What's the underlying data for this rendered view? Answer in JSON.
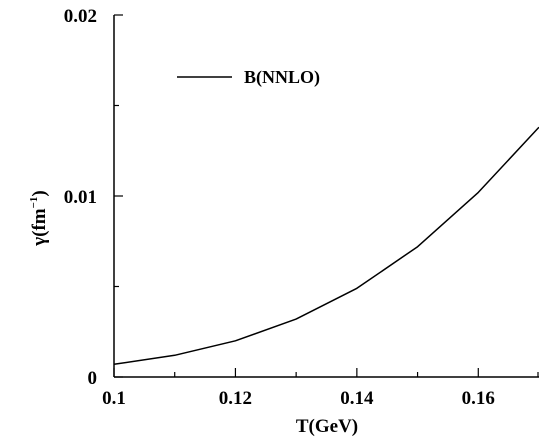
{
  "chart_data": {
    "type": "line",
    "xlabel": "T(GeV)",
    "ylabel_main": "γ(fm",
    "ylabel_sup": "−1",
    "ylabel_close": ")",
    "xlim": [
      0.1,
      0.17
    ],
    "ylim": [
      0,
      0.02
    ],
    "xticks_major": [
      0.1,
      0.12,
      0.14,
      0.16
    ],
    "xtick_labels": [
      "0.1",
      "0.12",
      "0.14",
      "0.16"
    ],
    "xticks_minor": [
      0.11,
      0.13,
      0.15,
      0.17
    ],
    "yticks_major": [
      0,
      0.01,
      0.02
    ],
    "ytick_labels": [
      "0",
      "0.01",
      "0.02"
    ],
    "yticks_minor": [
      0.005,
      0.015
    ],
    "grid": false,
    "legend_position": "top-left",
    "series": [
      {
        "name": "B(NNLO)",
        "color": "#000000",
        "x": [
          0.1,
          0.11,
          0.12,
          0.13,
          0.14,
          0.15,
          0.16,
          0.17
        ],
        "y": [
          0.0007,
          0.0012,
          0.002,
          0.0032,
          0.0049,
          0.0072,
          0.0102,
          0.0138
        ]
      }
    ]
  }
}
